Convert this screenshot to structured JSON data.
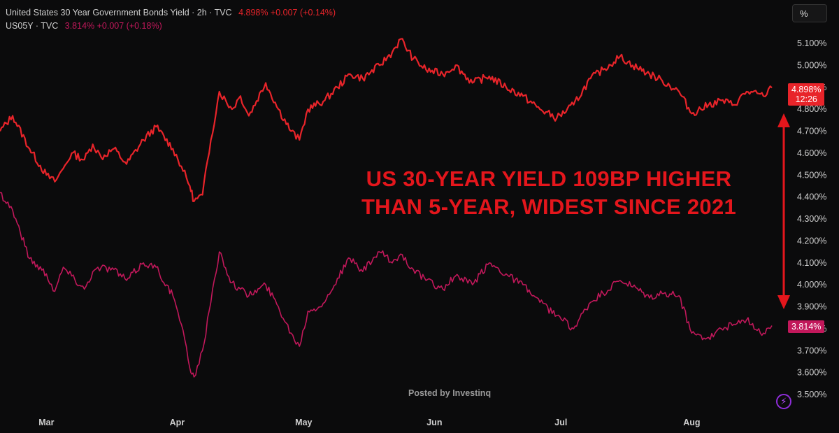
{
  "legend": {
    "series1_label": "United States 30 Year Government Bonds Yield · 2h · TVC",
    "series1_value": "4.898% +0.007 (+0.14%)",
    "series2_label": "US05Y · TVC",
    "series2_value": "3.814% +0.007 (+0.18%)"
  },
  "toolbar": {
    "unit_label": "%"
  },
  "annotation": {
    "line1": "US 30-YEAR YIELD 109BP HIGHER",
    "line2": "THAN 5-YEAR, WIDEST SINCE 2021"
  },
  "watermark": "Posted by Investinq",
  "price_tags": {
    "us30y_value": "4.898%",
    "us30y_countdown": "12:26",
    "us05y_value": "3.814%"
  },
  "colors": {
    "us30y": "#e8242a",
    "us05y": "#c2185b",
    "background": "#0b0b0c",
    "axis_text": "#cfcfcf"
  },
  "icons": {
    "brand_logo": "lightning-bolt-circle-icon"
  },
  "chart_data": {
    "type": "line",
    "title": "",
    "xlabel": "",
    "ylabel": "",
    "ylim": [
      3.5,
      5.15
    ],
    "y_ticks": [
      "3.500%",
      "3.600%",
      "3.700%",
      "3.800%",
      "3.900%",
      "4.000%",
      "4.100%",
      "4.200%",
      "4.300%",
      "4.400%",
      "4.500%",
      "4.600%",
      "4.700%",
      "4.800%",
      "4.900%",
      "5.000%",
      "5.100%"
    ],
    "x_ticks": [
      "Mar",
      "Apr",
      "May",
      "Jun",
      "Jul",
      "Aug"
    ],
    "xlim": [
      "2025-02-18",
      "2025-08-21"
    ],
    "grid": false,
    "legend_position": "top-left",
    "series": [
      {
        "name": "United States 30 Year Government Bonds Yield",
        "x": [
          "2025-02-18",
          "2025-02-21",
          "2025-02-25",
          "2025-03-01",
          "2025-03-03",
          "2025-03-05",
          "2025-03-07",
          "2025-03-10",
          "2025-03-12",
          "2025-03-14",
          "2025-03-17",
          "2025-03-20",
          "2025-03-24",
          "2025-03-27",
          "2025-03-31",
          "2025-04-02",
          "2025-04-04",
          "2025-04-05",
          "2025-04-07",
          "2025-04-09",
          "2025-04-11",
          "2025-04-14",
          "2025-04-16",
          "2025-04-18",
          "2025-04-22",
          "2025-04-25",
          "2025-04-28",
          "2025-04-30",
          "2025-05-02",
          "2025-05-06",
          "2025-05-09",
          "2025-05-12",
          "2025-05-15",
          "2025-05-19",
          "2025-05-22",
          "2025-05-24",
          "2025-05-27",
          "2025-05-30",
          "2025-06-03",
          "2025-06-06",
          "2025-06-10",
          "2025-06-14",
          "2025-06-18",
          "2025-06-22",
          "2025-06-26",
          "2025-06-30",
          "2025-07-04",
          "2025-07-08",
          "2025-07-11",
          "2025-07-15",
          "2025-07-18",
          "2025-07-22",
          "2025-07-25",
          "2025-07-29",
          "2025-08-01",
          "2025-08-05",
          "2025-08-08",
          "2025-08-11",
          "2025-08-14",
          "2025-08-18",
          "2025-08-20"
        ],
        "values": [
          4.7,
          4.77,
          4.62,
          4.5,
          4.47,
          4.53,
          4.6,
          4.57,
          4.64,
          4.58,
          4.62,
          4.55,
          4.66,
          4.72,
          4.62,
          4.54,
          4.45,
          4.38,
          4.41,
          4.66,
          4.88,
          4.8,
          4.86,
          4.77,
          4.92,
          4.8,
          4.7,
          4.66,
          4.8,
          4.84,
          4.9,
          4.96,
          4.94,
          5.0,
          5.06,
          5.12,
          5.03,
          4.98,
          4.96,
          5.0,
          4.92,
          4.95,
          4.9,
          4.86,
          4.8,
          4.76,
          4.82,
          4.94,
          4.98,
          5.04,
          5.0,
          4.96,
          4.93,
          4.88,
          4.78,
          4.82,
          4.84,
          4.82,
          4.88,
          4.86,
          4.898
        ]
      },
      {
        "name": "US05Y",
        "x": [
          "2025-02-18",
          "2025-02-21",
          "2025-02-25",
          "2025-03-01",
          "2025-03-03",
          "2025-03-05",
          "2025-03-07",
          "2025-03-10",
          "2025-03-12",
          "2025-03-14",
          "2025-03-17",
          "2025-03-20",
          "2025-03-24",
          "2025-03-27",
          "2025-03-31",
          "2025-04-02",
          "2025-04-04",
          "2025-04-05",
          "2025-04-07",
          "2025-04-09",
          "2025-04-11",
          "2025-04-14",
          "2025-04-16",
          "2025-04-18",
          "2025-04-22",
          "2025-04-25",
          "2025-04-28",
          "2025-04-30",
          "2025-05-02",
          "2025-05-06",
          "2025-05-09",
          "2025-05-12",
          "2025-05-15",
          "2025-05-19",
          "2025-05-22",
          "2025-05-24",
          "2025-05-27",
          "2025-05-30",
          "2025-06-03",
          "2025-06-06",
          "2025-06-10",
          "2025-06-14",
          "2025-06-18",
          "2025-06-22",
          "2025-06-26",
          "2025-06-30",
          "2025-07-04",
          "2025-07-08",
          "2025-07-11",
          "2025-07-15",
          "2025-07-18",
          "2025-07-22",
          "2025-07-25",
          "2025-07-29",
          "2025-08-01",
          "2025-08-05",
          "2025-08-08",
          "2025-08-11",
          "2025-08-14",
          "2025-08-18",
          "2025-08-20"
        ],
        "values": [
          4.42,
          4.34,
          4.12,
          4.05,
          3.97,
          4.08,
          4.04,
          3.98,
          4.06,
          4.08,
          4.07,
          4.02,
          4.1,
          4.08,
          3.95,
          3.82,
          3.62,
          3.58,
          3.7,
          3.92,
          4.15,
          4.01,
          3.98,
          3.95,
          4.0,
          3.9,
          3.78,
          3.72,
          3.88,
          3.92,
          4.03,
          4.12,
          4.06,
          4.15,
          4.1,
          4.14,
          4.07,
          4.02,
          3.98,
          4.04,
          4.0,
          4.1,
          4.05,
          4.0,
          3.92,
          3.86,
          3.8,
          3.92,
          3.96,
          4.02,
          3.99,
          3.94,
          3.96,
          3.95,
          3.78,
          3.76,
          3.8,
          3.82,
          3.84,
          3.78,
          3.814
        ]
      }
    ]
  }
}
